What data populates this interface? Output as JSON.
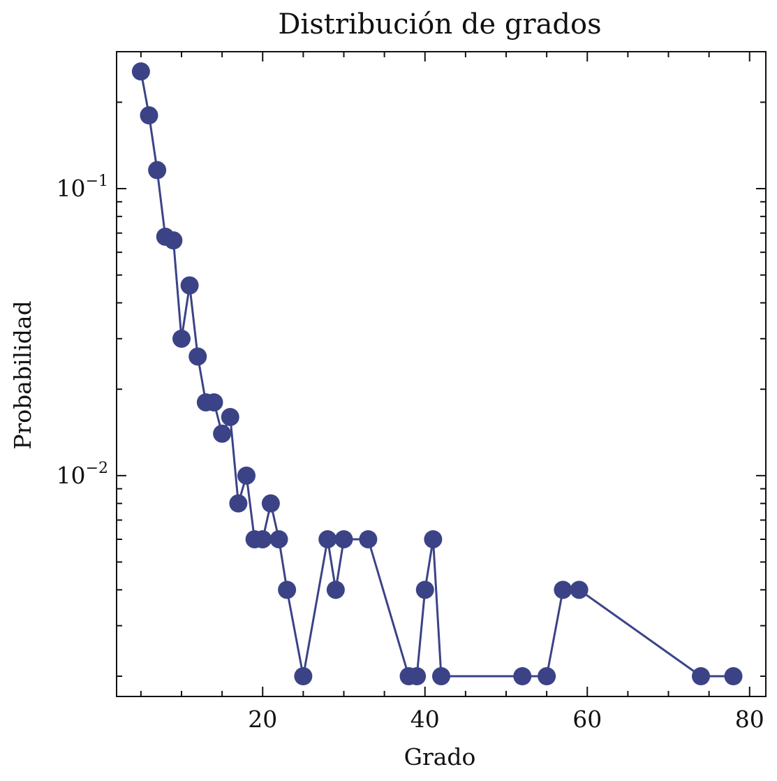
{
  "chart_data": {
    "type": "line",
    "title": "Distribución de grados",
    "xlabel": "Grado",
    "ylabel": "Probabilidad",
    "xlim": [
      2,
      82
    ],
    "ylim": [
      0.0017,
      0.3
    ],
    "yscale": "log",
    "grid": false,
    "x_ticks": [
      20,
      40,
      60,
      80
    ],
    "y_ticks": [
      {
        "value": 0.1,
        "base": "10",
        "exp": "−1"
      },
      {
        "value": 0.01,
        "base": "10",
        "exp": "−2"
      }
    ],
    "series": [
      {
        "color": "#3b4386",
        "marker": "circle",
        "x": [
          5,
          6,
          7,
          8,
          9,
          10,
          11,
          12,
          13,
          14,
          15,
          16,
          17,
          18,
          19,
          20,
          21,
          22,
          23,
          25,
          28,
          29,
          30,
          33,
          38,
          39,
          40,
          41,
          42,
          52,
          55,
          57,
          59,
          74,
          78
        ],
        "y": [
          0.256,
          0.18,
          0.116,
          0.068,
          0.066,
          0.03,
          0.046,
          0.026,
          0.018,
          0.018,
          0.014,
          0.016,
          0.008,
          0.01,
          0.006,
          0.006,
          0.008,
          0.006,
          0.004,
          0.002,
          0.006,
          0.004,
          0.006,
          0.006,
          0.002,
          0.002,
          0.004,
          0.006,
          0.002,
          0.002,
          0.002,
          0.004,
          0.004,
          0.002,
          0.002
        ]
      }
    ]
  }
}
